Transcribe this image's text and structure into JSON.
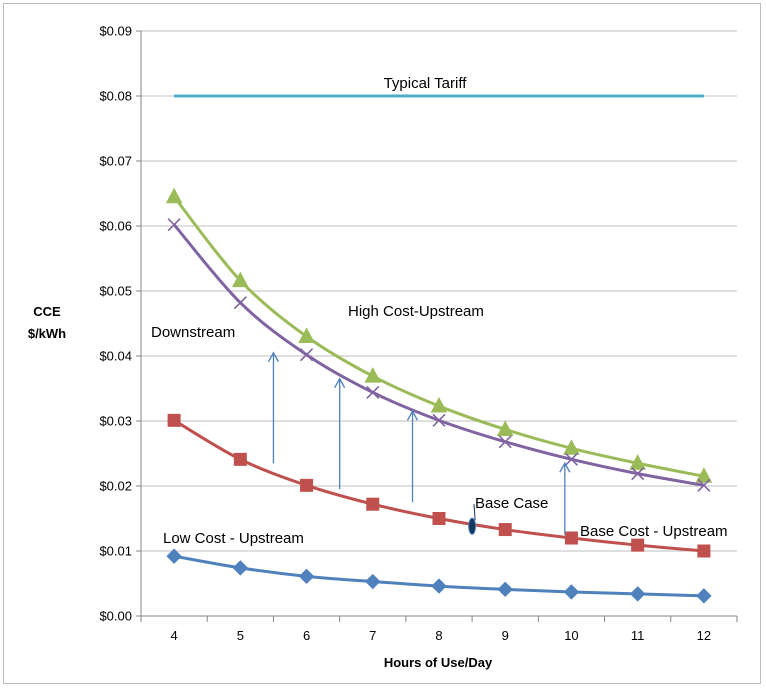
{
  "chart_data": {
    "type": "line",
    "title": "",
    "xlabel": "Hours of Use/Day",
    "ylabel_line1": "CCE",
    "ylabel_line2": "$/kWh",
    "x": [
      4,
      5,
      6,
      7,
      8,
      9,
      10,
      11,
      12
    ],
    "ylim": [
      0,
      0.09
    ],
    "yticks": [
      "$0.00",
      "$0.01",
      "$0.02",
      "$0.03",
      "$0.04",
      "$0.05",
      "$0.06",
      "$0.07",
      "$0.08",
      "$0.09"
    ],
    "grid": true,
    "series": [
      {
        "name": "Typical Tariff",
        "color": "#4bacc6",
        "marker": "none",
        "values": [
          0.08,
          0.08,
          0.08,
          0.08,
          0.08,
          0.08,
          0.08,
          0.08,
          0.08
        ]
      },
      {
        "name": "High Cost-Upstream",
        "color": "#9bbb59",
        "marker": "triangle",
        "values": [
          0.0645,
          0.0516,
          0.043,
          0.0369,
          0.0323,
          0.0287,
          0.0258,
          0.0235,
          0.0215
        ]
      },
      {
        "name": "Downstream",
        "color": "#8064a2",
        "marker": "x",
        "values": [
          0.0602,
          0.0482,
          0.0402,
          0.0344,
          0.0301,
          0.0268,
          0.0241,
          0.0219,
          0.0201
        ]
      },
      {
        "name": "Base Cost - Upstream",
        "color": "#c0504d",
        "marker": "square",
        "values": [
          0.0301,
          0.0241,
          0.0201,
          0.0172,
          0.015,
          0.0133,
          0.012,
          0.0109,
          0.01
        ]
      },
      {
        "name": "Low Cost - Upstream",
        "color": "#4f81bd",
        "marker": "diamond",
        "values": [
          0.0092,
          0.0074,
          0.0061,
          0.0053,
          0.0046,
          0.0041,
          0.0037,
          0.0034,
          0.0031
        ]
      }
    ],
    "annotations": {
      "typical_tariff": "Typical Tariff",
      "high_cost": "High Cost-Upstream",
      "downstream": "Downstream",
      "base_case": "Base Case",
      "base_cost": "Base Cost - Upstream",
      "low_cost": "Low Cost - Upstream"
    },
    "arrows": [
      {
        "x": 5.5,
        "from": 0.0235,
        "to": 0.0405
      },
      {
        "x": 6.5,
        "from": 0.0195,
        "to": 0.0365
      },
      {
        "x": 7.6,
        "from": 0.0175,
        "to": 0.0315
      },
      {
        "x": 9.9,
        "from": 0.0125,
        "to": 0.0235
      }
    ],
    "base_case_marker": {
      "x": 8.5,
      "y": 0.0138
    }
  }
}
